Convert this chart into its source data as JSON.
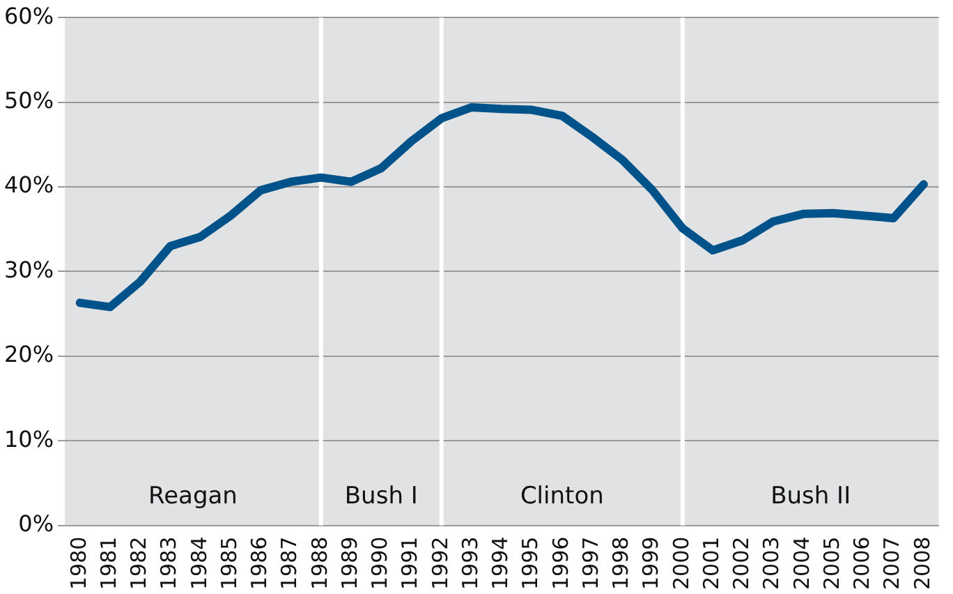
{
  "chart_data": {
    "type": "line",
    "categories": [
      "1980",
      "1981",
      "1982",
      "1983",
      "1984",
      "1985",
      "1986",
      "1987",
      "1988",
      "1989",
      "1990",
      "1991",
      "1992",
      "1993",
      "1994",
      "1995",
      "1996",
      "1997",
      "1998",
      "1999",
      "2000",
      "2001",
      "2002",
      "2003",
      "2004",
      "2005",
      "2006",
      "2007",
      "2008"
    ],
    "series": [
      {
        "color": "#00538a",
        "values": [
          26.3,
          25.8,
          28.8,
          33.0,
          34.1,
          36.6,
          39.6,
          40.6,
          41.1,
          40.6,
          42.2,
          45.4,
          48.1,
          49.4,
          49.2,
          49.1,
          48.4,
          45.9,
          43.2,
          39.6,
          35.1,
          32.5,
          33.7,
          35.9,
          36.8,
          36.9,
          36.6,
          36.3,
          40.3
        ]
      }
    ],
    "ylim": [
      0,
      60
    ],
    "yticks": [
      {
        "value": 0,
        "label": "0%"
      },
      {
        "value": 10,
        "label": "10%"
      },
      {
        "value": 20,
        "label": "20%"
      },
      {
        "value": 30,
        "label": "30%"
      },
      {
        "value": 40,
        "label": "40%"
      },
      {
        "value": 50,
        "label": "50%"
      },
      {
        "value": 60,
        "label": "60%"
      }
    ],
    "grid": "y",
    "legend": false,
    "marker": "none",
    "line_style": "solid",
    "ref_lines": [
      {
        "axis": "x",
        "value": "1988",
        "color": "#ffffff"
      },
      {
        "axis": "x",
        "value": "1992",
        "color": "#ffffff"
      },
      {
        "axis": "x",
        "value": "2000",
        "color": "#ffffff"
      }
    ],
    "annotations": [
      "Reagan",
      "Bush I",
      "Clinton",
      "Bush II"
    ]
  }
}
